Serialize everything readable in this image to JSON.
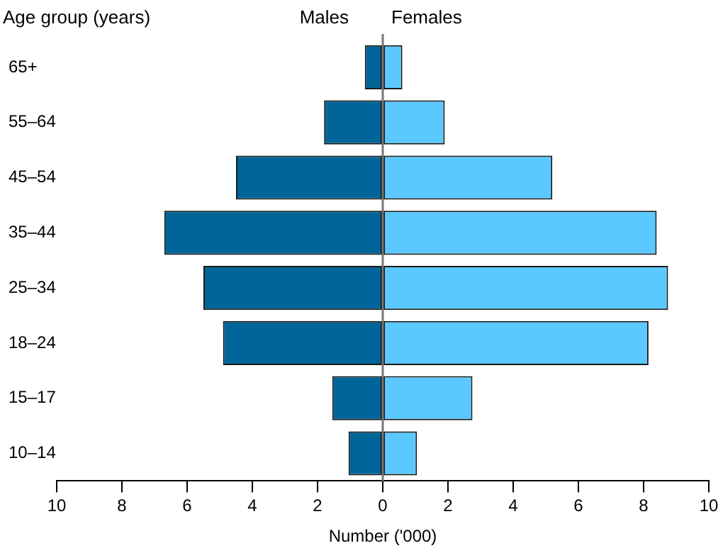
{
  "chart_data": {
    "type": "bar",
    "orientation": "horizontal",
    "stacked": true,
    "ylabel": "Age group (years)",
    "xlabel": "Number ('000)",
    "categories": [
      "65+",
      "55–64",
      "45–54",
      "35–44",
      "25–34",
      "18–24",
      "15–17",
      "10–14"
    ],
    "series": [
      {
        "name": "Males",
        "color": "#006699",
        "values": [
          -0.55,
          -1.8,
          -4.5,
          -6.7,
          -5.5,
          -4.9,
          -1.55,
          -1.05
        ]
      },
      {
        "name": "Females",
        "color": "#5bc8ff",
        "values": [
          0.6,
          1.9,
          5.2,
          8.4,
          8.75,
          8.15,
          2.75,
          1.05
        ]
      }
    ],
    "xlim": [
      -10,
      10
    ],
    "xticks": [
      {
        "value": -10,
        "label": "10"
      },
      {
        "value": -8,
        "label": "8"
      },
      {
        "value": -6,
        "label": "6"
      },
      {
        "value": -4,
        "label": "4"
      },
      {
        "value": -2,
        "label": "2"
      },
      0,
      2,
      4,
      6,
      8,
      10
    ]
  }
}
